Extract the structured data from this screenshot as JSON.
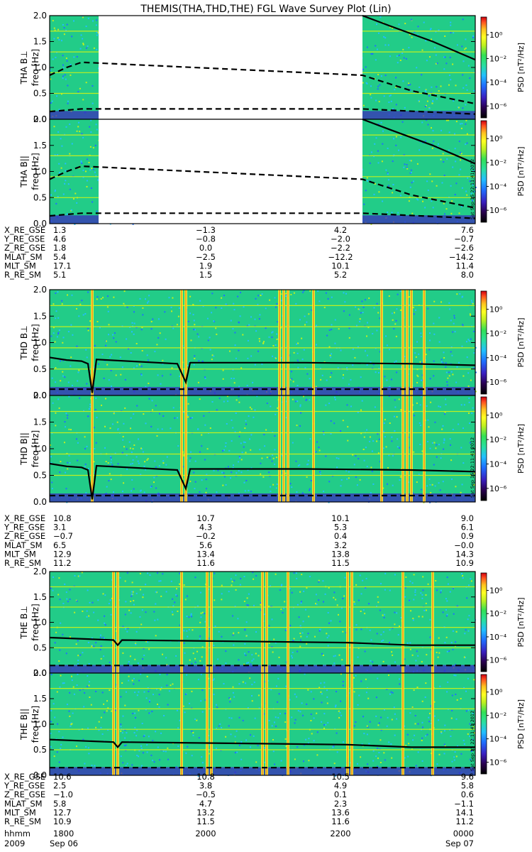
{
  "title": "THEMIS(THA,THD,THE) FGL Wave Survey Plot (Lin)",
  "creation_stamp": "Sat Sep 15 22:11:41 2012",
  "colors": {
    "background": "#ffffff",
    "axis": "#000000",
    "line": "#000000",
    "spectrogram_base": "#22cc88"
  },
  "colorbar": {
    "title": "PSD [nT²/Hz]",
    "colormap": [
      "#000000",
      "#2a0050",
      "#3a1fbf",
      "#1f6fff",
      "#22bfff",
      "#2adfa0",
      "#33e055",
      "#bff020",
      "#ffff22",
      "#ffc020",
      "#ff5020",
      "#d00010"
    ],
    "tick_labels": [
      "10⁰",
      "10⁻²",
      "10⁻⁴",
      "10⁻⁶"
    ],
    "log_range": [
      -7,
      1.5
    ],
    "tick_values": [
      0,
      -2,
      -4,
      -6
    ]
  },
  "panels": [
    {
      "probe": "THA",
      "component": "B⊥",
      "label": "THA B⊥",
      "ylabel": "freq [Hz]",
      "data_gaps": [
        [
          0.115,
          0.735
        ]
      ],
      "series": "A"
    },
    {
      "probe": "THA",
      "component": "B||",
      "label": "THA B||",
      "ylabel": "freq [Hz]",
      "data_gaps": [
        [
          0.115,
          0.735
        ]
      ],
      "series": "A"
    },
    {
      "probe": "THD",
      "component": "B⊥",
      "label": "THD B⊥",
      "ylabel": "freq [Hz]",
      "data_gaps": [],
      "series": "D"
    },
    {
      "probe": "THD",
      "component": "B||",
      "label": "THD B||",
      "ylabel": "freq [Hz]",
      "data_gaps": [],
      "series": "D"
    },
    {
      "probe": "THE",
      "component": "B⊥",
      "label": "THE B⊥",
      "ylabel": "freq [Hz]",
      "data_gaps": [],
      "series": "E"
    },
    {
      "probe": "THE",
      "component": "B||",
      "label": "THE B||",
      "ylabel": "freq [Hz]",
      "data_gaps": [],
      "series": "E"
    }
  ],
  "y_axis": {
    "range": [
      0,
      2.0
    ],
    "ticks": [
      0.0,
      0.5,
      1.0,
      1.5,
      2.0
    ],
    "tick_labels": [
      "0.0",
      "0.5",
      "1.0",
      "1.5",
      "2.0"
    ]
  },
  "orbit_tables": [
    {
      "rows": [
        {
          "label": "X_RE_GSE",
          "values": [
            "1.3",
            "−1.3",
            "4.2",
            "7.6"
          ]
        },
        {
          "label": "Y_RE_GSE",
          "values": [
            "4.6",
            "−0.8",
            "−2.0",
            "−0.7"
          ]
        },
        {
          "label": "Z_RE_GSE",
          "values": [
            "1.8",
            "0.0",
            "−2.2",
            "−2.6"
          ]
        },
        {
          "label": "MLAT_SM",
          "values": [
            "5.4",
            "−2.5",
            "−12.2",
            "−14.2"
          ]
        },
        {
          "label": "MLT_SM",
          "values": [
            "17.1",
            "1.9",
            "10.1",
            "11.4"
          ]
        },
        {
          "label": "R_RE_SM",
          "values": [
            "5.1",
            "1.5",
            "5.2",
            "8.0"
          ]
        }
      ]
    },
    {
      "rows": [
        {
          "label": "X_RE_GSE",
          "values": [
            "10.8",
            "10.7",
            "10.1",
            "9.0"
          ]
        },
        {
          "label": "Y_RE_GSE",
          "values": [
            "3.1",
            "4.3",
            "5.3",
            "6.1"
          ]
        },
        {
          "label": "Z_RE_GSE",
          "values": [
            "−0.7",
            "−0.2",
            "0.4",
            "0.9"
          ]
        },
        {
          "label": "MLAT_SM",
          "values": [
            "6.5",
            "5.6",
            "3.2",
            "−0.0"
          ]
        },
        {
          "label": "MLT_SM",
          "values": [
            "12.9",
            "13.4",
            "13.8",
            "14.3"
          ]
        },
        {
          "label": "R_RE_SM",
          "values": [
            "11.2",
            "11.6",
            "11.5",
            "10.9"
          ]
        }
      ]
    },
    {
      "rows": [
        {
          "label": "X_RE_GSE",
          "values": [
            "10.6",
            "10.8",
            "10.5",
            "9.6"
          ]
        },
        {
          "label": "Y_RE_GSE",
          "values": [
            "2.5",
            "3.8",
            "4.9",
            "5.8"
          ]
        },
        {
          "label": "Z_RE_GSE",
          "values": [
            "−1.0",
            "−0.5",
            "0.1",
            "0.6"
          ]
        },
        {
          "label": "MLAT_SM",
          "values": [
            "5.8",
            "4.7",
            "2.3",
            "−1.1"
          ]
        },
        {
          "label": "MLT_SM",
          "values": [
            "12.7",
            "13.2",
            "13.6",
            "14.1"
          ]
        },
        {
          "label": "R_RE_SM",
          "values": [
            "10.9",
            "11.5",
            "11.6",
            "11.2"
          ]
        }
      ]
    }
  ],
  "time_axis": {
    "hhmm_label": "hhmm",
    "ticks": [
      "1800",
      "2000",
      "2200",
      "0000"
    ],
    "year": "2009",
    "start_date": "Sep 06",
    "end_date": "Sep 07"
  },
  "chart_data": [
    {
      "type": "heatmap",
      "title": "THEMIS(THA,THD,THE) FGL Wave Survey Plot (Lin)",
      "x_ticks": [
        "1800",
        "2000",
        "2200",
        "0000"
      ],
      "ylabel": "freq [Hz]",
      "ylim": [
        0,
        2.0
      ],
      "colorbar_label": "PSD [nT²/Hz]",
      "colorbar_ticks": [
        "10⁰",
        "10⁻²",
        "10⁻⁴",
        "10⁻⁶"
      ],
      "panels": [
        "THA B⊥",
        "THA B||",
        "THD B⊥",
        "THD B||",
        "THE B⊥",
        "THE B||"
      ],
      "overlay_lines": {
        "A": {
          "solid": [
            [
              0.735,
              2.05
            ],
            [
              0.8,
              1.8
            ],
            [
              0.9,
              1.5
            ],
            [
              1.0,
              1.15
            ]
          ],
          "dashed": [
            [
              0.0,
              0.85
            ],
            [
              0.04,
              1.0
            ],
            [
              0.075,
              1.1
            ],
            [
              0.735,
              0.85
            ],
            [
              0.85,
              0.55
            ],
            [
              1.0,
              0.3
            ]
          ],
          "dashed_low": [
            [
              0.0,
              0.15
            ],
            [
              0.075,
              0.2
            ],
            [
              0.735,
              0.2
            ],
            [
              1.0,
              0.1
            ]
          ]
        },
        "D": {
          "solid": [
            [
              0.0,
              0.72
            ],
            [
              0.04,
              0.67
            ],
            [
              0.075,
              0.65
            ],
            [
              0.09,
              0.6
            ],
            [
              0.1,
              0.05
            ],
            [
              0.11,
              0.68
            ],
            [
              0.3,
              0.6
            ],
            [
              0.32,
              0.25
            ],
            [
              0.33,
              0.62
            ],
            [
              0.6,
              0.62
            ],
            [
              0.85,
              0.6
            ],
            [
              1.0,
              0.57
            ]
          ],
          "dashed": [
            [
              0.0,
              0.12
            ],
            [
              1.0,
              0.12
            ]
          ]
        },
        "E": {
          "solid": [
            [
              0.0,
              0.7
            ],
            [
              0.15,
              0.65
            ],
            [
              0.16,
              0.55
            ],
            [
              0.17,
              0.65
            ],
            [
              0.5,
              0.62
            ],
            [
              0.7,
              0.6
            ],
            [
              0.85,
              0.55
            ],
            [
              1.0,
              0.55
            ]
          ],
          "dashed": [
            [
              0.0,
              0.15
            ],
            [
              1.0,
              0.15
            ]
          ]
        }
      },
      "bright_streaks": {
        "D": [
          0.1,
          0.31,
          0.32,
          0.54,
          0.55,
          0.56,
          0.62,
          0.78,
          0.83,
          0.84,
          0.85,
          0.88
        ],
        "E": [
          0.15,
          0.16,
          0.31,
          0.37,
          0.38,
          0.5,
          0.51,
          0.56,
          0.7,
          0.71,
          0.83,
          0.9
        ]
      }
    }
  ]
}
